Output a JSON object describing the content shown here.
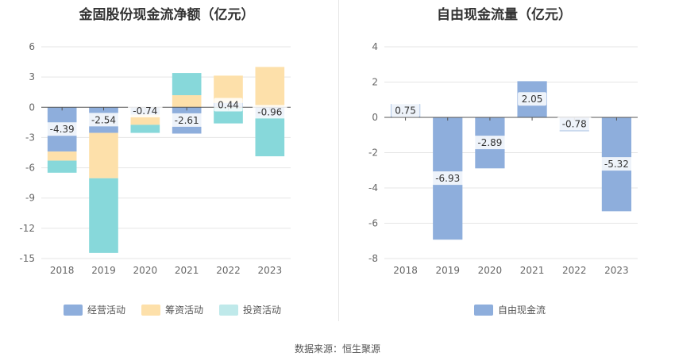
{
  "source": "数据来源：恒生聚源",
  "chart_data": [
    {
      "type": "bar",
      "stacked": true,
      "title": "金固股份现金流净额（亿元）",
      "categories": [
        "2018",
        "2019",
        "2020",
        "2021",
        "2022",
        "2023"
      ],
      "yticks": [
        6,
        3,
        0,
        -3,
        -6,
        -9,
        -12,
        -15
      ],
      "ylim": [
        -15,
        6
      ],
      "series": [
        {
          "name": "经营活动",
          "color": "#8eaedc",
          "values": [
            -4.39,
            -2.54,
            -0.74,
            -2.61,
            0.44,
            -0.96
          ]
        },
        {
          "name": "筹资活动",
          "color": "#fde0aa",
          "values": [
            -0.9,
            -4.5,
            -1.0,
            1.2,
            2.7,
            4.0
          ]
        },
        {
          "name": "投资活动",
          "color": "#87d8da",
          "values": [
            -1.2,
            -7.4,
            -0.8,
            2.2,
            -1.6,
            -3.9
          ]
        }
      ],
      "labels": [
        "-4.39",
        "-2.54",
        "-0.74",
        "-2.61",
        "0.44",
        "-0.96"
      ]
    },
    {
      "type": "bar",
      "title": "自由现金流量（亿元）",
      "categories": [
        "2018",
        "2019",
        "2020",
        "2021",
        "2022",
        "2023"
      ],
      "yticks": [
        4,
        2,
        0,
        -2,
        -4,
        -6,
        -8
      ],
      "ylim": [
        -8,
        4
      ],
      "series": [
        {
          "name": "自由现金流",
          "color": "#8eaedc",
          "values": [
            0.75,
            -6.93,
            -2.89,
            2.05,
            -0.78,
            -5.32
          ]
        }
      ],
      "labels": [
        "0.75",
        "-6.93",
        "-2.89",
        "2.05",
        "-0.78",
        "-5.32"
      ]
    }
  ]
}
